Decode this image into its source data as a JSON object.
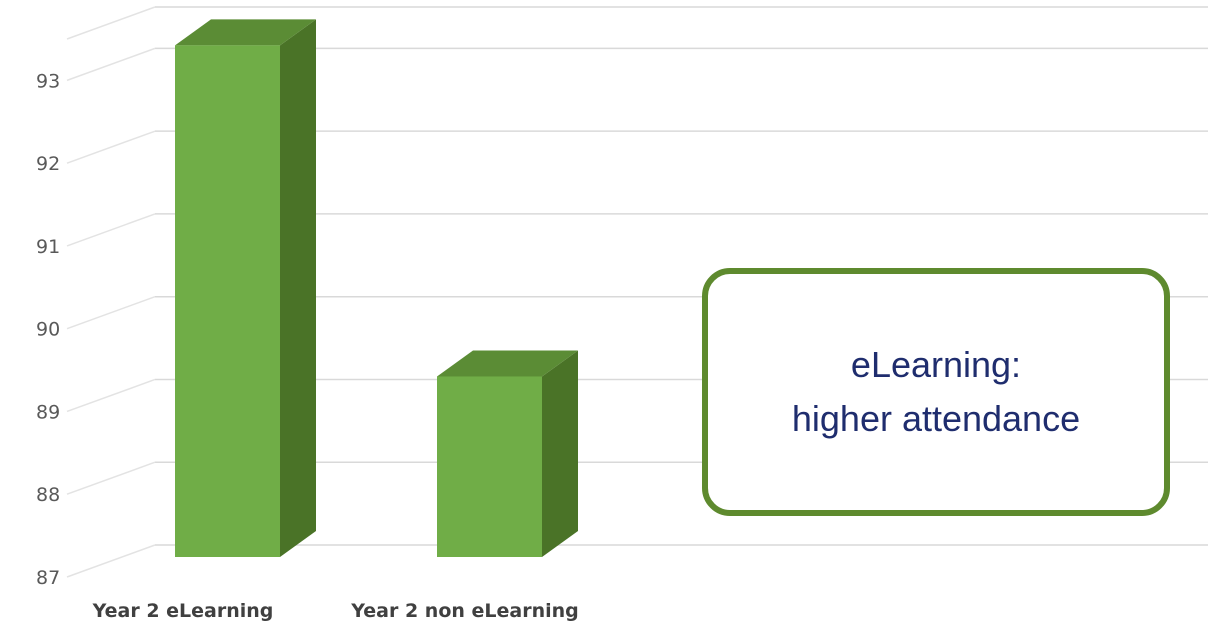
{
  "chart_data": {
    "type": "bar",
    "categories": [
      "Year 2 eLearning",
      "Year 2 non eLearning"
    ],
    "values": [
      93,
      89
    ],
    "ylim": [
      87,
      93
    ],
    "yticks": [
      87,
      88,
      89,
      90,
      91,
      92,
      93
    ],
    "grid": true,
    "style": "3d-column",
    "bar_color": "#70ad47",
    "bar_side_color": "#4a7327",
    "bar_top_color": "#5b8c35"
  },
  "callout": {
    "line1": "eLearning:",
    "line2": "higher attendance",
    "border_color": "#5e8a2e",
    "text_color": "#1f2d6e"
  }
}
